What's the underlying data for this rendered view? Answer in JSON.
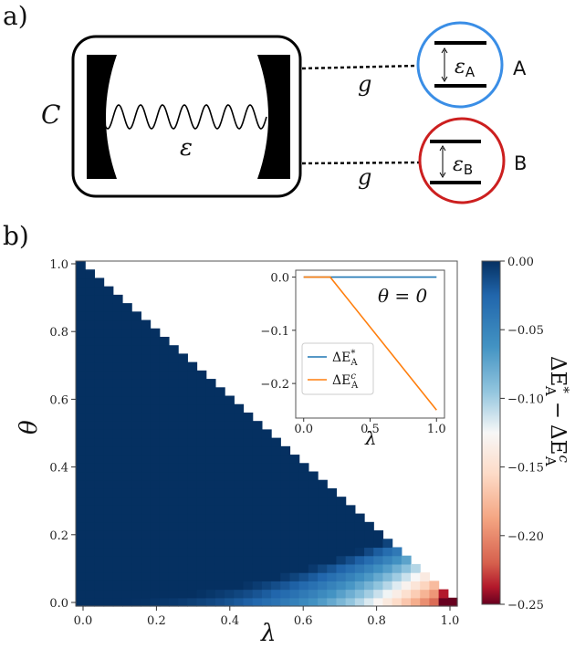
{
  "panel_a": {
    "label": "a)",
    "cavity_label": "C",
    "photon_label": "ε",
    "coupling_top": "g",
    "coupling_bottom": "g",
    "qubit_a": {
      "name": "A",
      "gap_symbol": "ε",
      "gap_sub": "A",
      "color": "#3a8ee6"
    },
    "qubit_b": {
      "name": "B",
      "gap_symbol": "ε",
      "gap_sub": "B",
      "color": "#cc1f1f"
    }
  },
  "panel_b": {
    "label": "b)",
    "xlabel": "λ",
    "ylabel": "θ",
    "xticks": [
      "0.0",
      "0.2",
      "0.4",
      "0.6",
      "0.8",
      "1.0"
    ],
    "yticks": [
      "0.0",
      "0.2",
      "0.4",
      "0.6",
      "0.8",
      "1.0"
    ],
    "colorbar": {
      "label_main": "ΔE",
      "label_sup1": "*",
      "label_sub1": "A",
      "label_minus": "−",
      "label_main2": "ΔE",
      "label_sup2": "c",
      "label_sub2": "A",
      "ticks": [
        "0.00",
        "−0.05",
        "−0.10",
        "−0.15",
        "−0.20",
        "−0.25"
      ]
    },
    "inset": {
      "annotation": "θ = 0",
      "xlabel": "λ",
      "xticks": [
        "0.0",
        "0.5",
        "1.0"
      ],
      "yticks": [
        "0.0",
        "−0.1",
        "−0.2"
      ],
      "legend_star_main": "ΔE",
      "legend_star_sup": "*",
      "legend_star_sub": "A",
      "legend_c_main": "ΔE",
      "legend_c_sup": "c",
      "legend_c_sub": "A"
    }
  },
  "chart_data": [
    {
      "type": "heatmap",
      "xlabel": "λ",
      "ylabel": "θ",
      "xlim": [
        0,
        1
      ],
      "ylim": [
        0,
        1
      ],
      "grid_resolution": 41,
      "colormap": "RdBu",
      "color_range": [
        -0.25,
        0.0
      ],
      "colorbar_label": "ΔE*_A − ΔE^c_A",
      "region_zero_boundary": "θ ≈ 1 − λ (value 0 above boundary)",
      "low_theta_band": "values decrease toward −0.25 near λ = 1, θ = 0"
    },
    {
      "type": "line",
      "x": [
        0.0,
        0.2,
        1.0
      ],
      "xlim": [
        0,
        1
      ],
      "ylim": [
        -0.25,
        0.01
      ],
      "series": [
        {
          "name": "ΔE*_A",
          "color": "#1f77b4",
          "x": [
            0.0,
            1.0
          ],
          "y": [
            0.0,
            0.0
          ]
        },
        {
          "name": "ΔE^c_A",
          "color": "#ff7f0e",
          "x": [
            0.0,
            0.2,
            1.0
          ],
          "y": [
            0.0,
            0.0,
            -0.25
          ]
        }
      ],
      "annotation": "θ = 0"
    }
  ]
}
